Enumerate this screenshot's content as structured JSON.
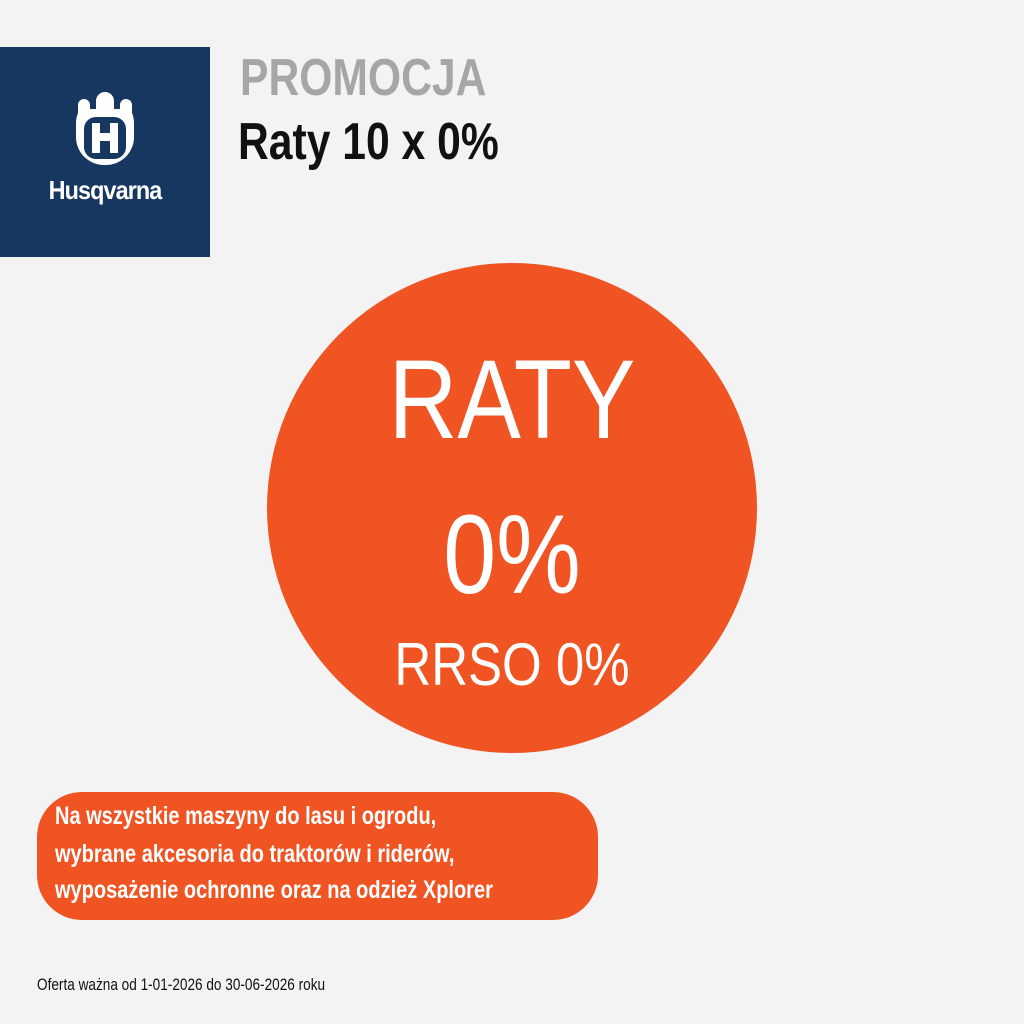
{
  "logo": {
    "brand_name": "Husqvarna"
  },
  "header": {
    "eyebrow": "PROMOCJA",
    "title": "Raty 10 x 0%"
  },
  "badge": {
    "line1": "RATY",
    "line2": "0%",
    "line3": "RRSO 0%"
  },
  "description": {
    "lines": [
      "Na wszystkie maszyny do lasu i ogrodu,",
      "wybrane akcesoria do traktorów i riderów,",
      "wyposażenie ochronne oraz na odzież Xplorer"
    ]
  },
  "footer": {
    "validity": "Oferta ważna od 1-01-2026 do 30-06-2026 roku"
  },
  "colors": {
    "brand_blue": "#163760",
    "accent_orange": "#f05423",
    "background": "#f3f3f3"
  }
}
